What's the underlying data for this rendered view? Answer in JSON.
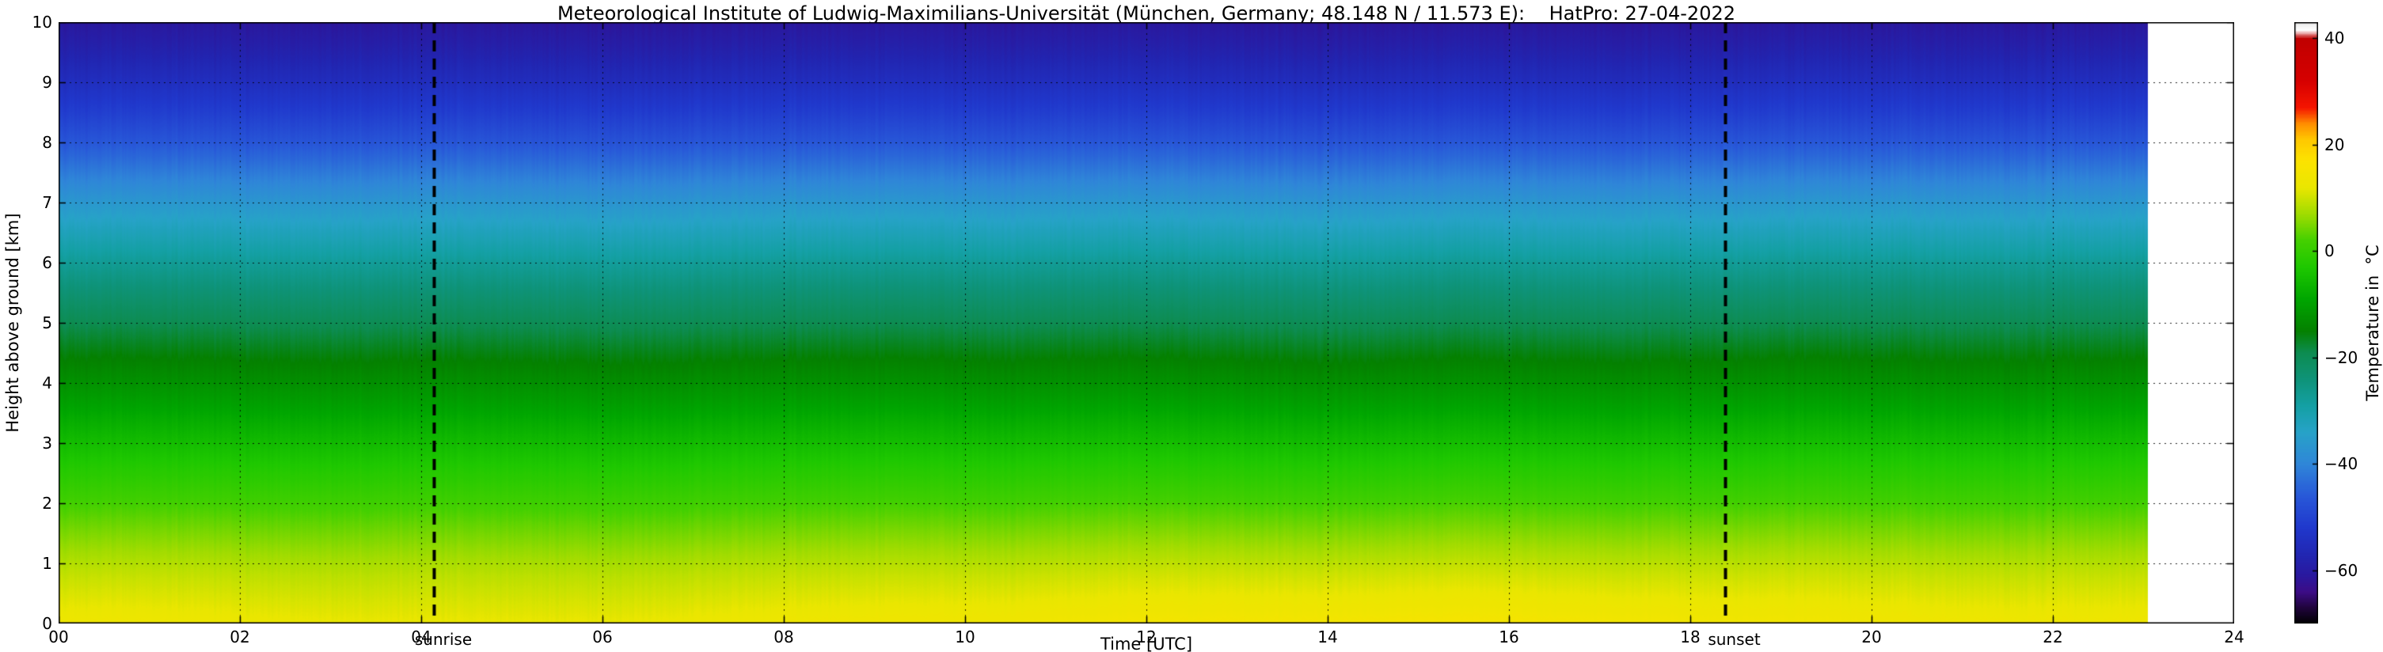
{
  "figure": {
    "background_color": "#ffffff",
    "axis_color": "#000000"
  },
  "chart_data": {
    "type": "heatmap",
    "title": "Meteorological Institute of Ludwig-Maximilians-Universität (München, Germany; 48.148 N / 11.573 E):    HatPro: 27-04-2022",
    "xlabel": "Time [UTC]",
    "ylabel": "Height above ground [km]",
    "colorbar_label": "Temperature in  °C",
    "x_range_hours_utc": [
      0,
      24
    ],
    "y_range_km": [
      0,
      10
    ],
    "data_end_hour_utc": 23.05,
    "x_tick_values": [
      0,
      2,
      4,
      6,
      8,
      10,
      12,
      14,
      16,
      18,
      20,
      22,
      24
    ],
    "x_tick_labels": [
      "00",
      "02",
      "04",
      "06",
      "08",
      "10",
      "12",
      "14",
      "16",
      "18",
      "20",
      "22",
      "24"
    ],
    "y_tick_values": [
      0,
      1,
      2,
      3,
      4,
      5,
      6,
      7,
      8,
      9,
      10
    ],
    "y_tick_labels": [
      "0",
      "1",
      "2",
      "3",
      "4",
      "5",
      "6",
      "7",
      "8",
      "9",
      "10"
    ],
    "colorbar_tick_values": [
      40,
      20,
      0,
      -20,
      -40,
      -60
    ],
    "colorbar_tick_labels": [
      "40",
      "20",
      "0",
      "−20",
      "−40",
      "−60"
    ],
    "colorbar_range": [
      -70,
      43
    ],
    "grid": {
      "style": "dotted",
      "color": "#000000"
    },
    "annotations": [
      {
        "label": "sunrise",
        "hour_utc": 4.14,
        "line_style": "dashed",
        "color": "#000000"
      },
      {
        "label": "sunset",
        "hour_utc": 18.38,
        "line_style": "dashed",
        "color": "#000000"
      }
    ],
    "colormap_stops": [
      [
        -70,
        "#000000"
      ],
      [
        -67,
        "#20043c"
      ],
      [
        -64,
        "#3c0c86"
      ],
      [
        -61,
        "#2a189e"
      ],
      [
        -57,
        "#2126b2"
      ],
      [
        -52,
        "#2038cc"
      ],
      [
        -46,
        "#2858d8"
      ],
      [
        -40,
        "#2f86d8"
      ],
      [
        -34,
        "#27a2c8"
      ],
      [
        -29,
        "#14a0a4"
      ],
      [
        -24,
        "#0e9378"
      ],
      [
        -19,
        "#0d8c50"
      ],
      [
        -15,
        "#048000"
      ],
      [
        -9,
        "#00a600"
      ],
      [
        -3,
        "#1ec800"
      ],
      [
        2,
        "#44d000"
      ],
      [
        7,
        "#a0dc00"
      ],
      [
        12,
        "#eae600"
      ],
      [
        17,
        "#fce300"
      ],
      [
        21,
        "#ffc800"
      ],
      [
        24,
        "#ff8c00"
      ],
      [
        27,
        "#f51500"
      ],
      [
        32,
        "#d60000"
      ],
      [
        40,
        "#c00000"
      ],
      [
        41.5,
        "#ffffff"
      ],
      [
        43,
        "#ebebeb"
      ]
    ],
    "profile": {
      "heights_km": [
        0,
        0.4,
        0.8,
        1.2,
        1.6,
        2,
        2.5,
        3,
        3.5,
        4,
        4.5,
        5,
        5.5,
        6,
        6.5,
        7,
        7.5,
        8,
        8.5,
        9,
        9.5,
        10
      ],
      "temps_c": [
        13,
        11.2,
        9.3,
        6.9,
        4.3,
        1.6,
        -1.8,
        -5.2,
        -8.8,
        -12.4,
        -15.8,
        -19.4,
        -23.4,
        -27.5,
        -32,
        -36.5,
        -41.5,
        -46.5,
        -51,
        -54.8,
        -58.2,
        -61.2
      ]
    },
    "diurnal_surface_variation": {
      "afternoon_peak_hour_utc": 15,
      "peak_warming_c": 2.2,
      "predawn_cooling_c": 0.9
    }
  }
}
